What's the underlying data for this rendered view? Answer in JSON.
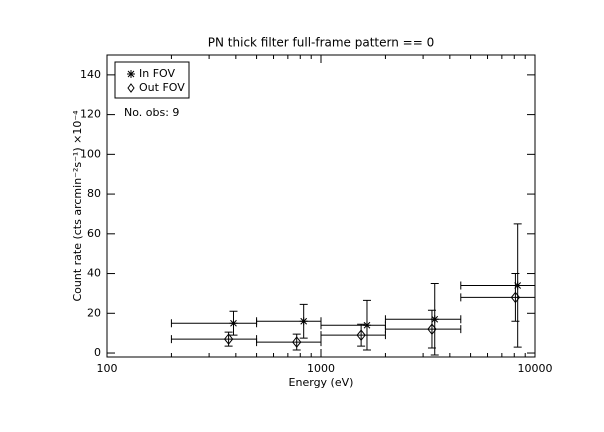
{
  "chart_data": {
    "type": "scatter",
    "title": "PN thick filter full-frame pattern == 0",
    "xlabel": "Energy (eV)",
    "ylabel": "Count rate (cts arcmin⁻²s⁻¹) ×10⁻⁴",
    "annotation": "No. obs: 9",
    "xlog": true,
    "xlim": [
      100,
      10000
    ],
    "xticks": [
      100,
      1000,
      10000
    ],
    "xminorticks": [
      200,
      300,
      400,
      500,
      600,
      700,
      800,
      900,
      2000,
      3000,
      4000,
      5000,
      6000,
      7000,
      8000,
      9000
    ],
    "ylim": [
      -2,
      150
    ],
    "yticks": [
      0,
      20,
      40,
      60,
      80,
      100,
      120,
      140
    ],
    "bins": [
      200,
      500,
      1000,
      2000,
      4500,
      10000
    ],
    "legend": "upper left",
    "series": [
      {
        "name": "In FOV",
        "marker": "asterisk",
        "color": "#000000",
        "x": [
          390,
          830,
          1640,
          3400,
          8300
        ],
        "values": [
          15,
          16,
          14,
          17,
          34
        ],
        "errors": [
          6,
          8.5,
          12.5,
          18,
          31
        ]
      },
      {
        "name": "Out FOV",
        "marker": "diamond",
        "color": "#000000",
        "x": [
          370,
          770,
          1540,
          3300,
          8100
        ],
        "values": [
          7,
          5.5,
          9,
          12,
          28
        ],
        "errors": [
          3.5,
          4,
          5.5,
          9.5,
          12
        ]
      }
    ]
  }
}
